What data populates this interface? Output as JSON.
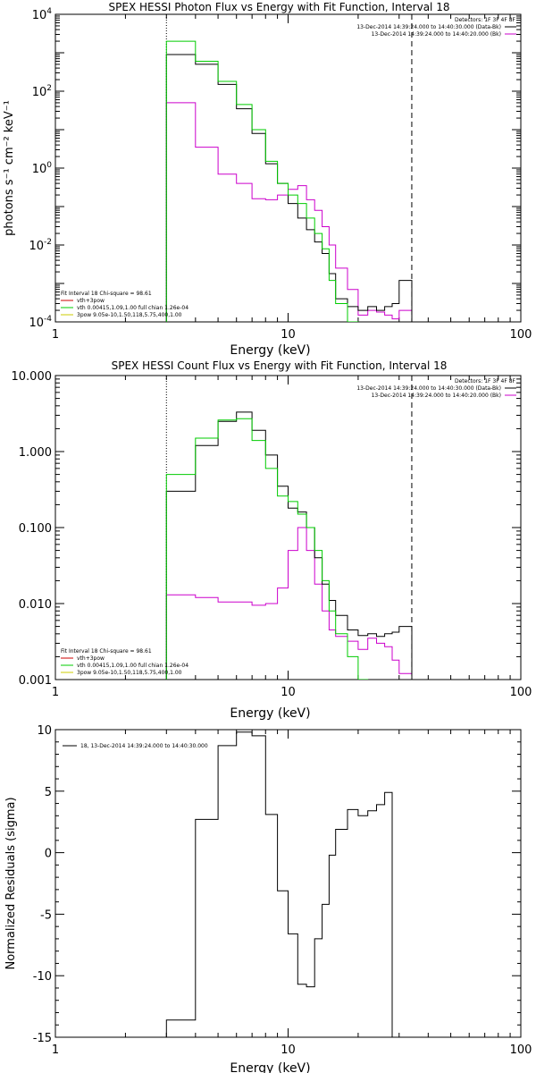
{
  "colors": {
    "black": "#000000",
    "green": "#00cc00",
    "magenta": "#cc00cc",
    "red": "#cc0000",
    "yellow": "#cccc00"
  },
  "chart_data": [
    {
      "type": "line",
      "title": "SPEX HESSI Photon Flux vs Energy with Fit Function, Interval 18",
      "xlabel": "Energy (keV)",
      "ylabel": "photons s⁻¹ cm⁻² keV⁻¹",
      "xscale": "log",
      "yscale": "log",
      "xlim": [
        1,
        100
      ],
      "ylim": [
        0.0001,
        10000
      ],
      "xticks": [
        {
          "v": 1,
          "t": "1"
        },
        {
          "v": 10,
          "t": "10"
        },
        {
          "v": 100,
          "t": "100"
        }
      ],
      "yticks": [
        {
          "v": 0.0001,
          "b": "10",
          "e": "-4"
        },
        {
          "v": 0.01,
          "b": "10",
          "e": "-2"
        },
        {
          "v": 1,
          "b": "10",
          "e": "0"
        },
        {
          "v": 100,
          "b": "10",
          "e": "2"
        },
        {
          "v": 10000,
          "b": "10",
          "e": "4"
        }
      ],
      "vlines": [
        {
          "x": 3.0,
          "style": "dotted"
        },
        {
          "x": 34.0,
          "style": "dashed"
        }
      ],
      "legend_top": [
        "Detectors: 1F 3F 4F 8F",
        "13-Dec-2014 14:39:24.000 to 14:40:30.000 (Data-Bk)",
        "13-Dec-2014 14:39:24.000 to 14:40:20.000 (Bk)"
      ],
      "legend_bottom": [
        "Fit Interval 18   Chi-square = 98.61",
        "vth+3pow",
        "vth 0.00415,1.09,1.00  full chian 1.26e-04",
        "3pow 9.05e-10,1.50,118,5.75,400,1.00"
      ],
      "edges": [
        3.0,
        3.5,
        4.0,
        5.0,
        6.0,
        7.0,
        8.0,
        9.0,
        10.0,
        11.0,
        12.0,
        13.0,
        14.0,
        15.0,
        16.0,
        18.0,
        20.0,
        22.0,
        24.0,
        26.0,
        28.0,
        30.0,
        34.0
      ],
      "series": [
        {
          "name": "13-Dec-2014 14:39:24.000 to 14:40:30.000 (Data-Bk)",
          "color": "black",
          "values": [
            900,
            900,
            500,
            150,
            35,
            8,
            1.3,
            0.4,
            0.12,
            0.05,
            0.025,
            0.012,
            0.006,
            0.0018,
            0.0004,
            0.00025,
            0.0002,
            0.00025,
            0.0002,
            0.00025,
            0.0003,
            0.0012
          ]
        },
        {
          "name": "13-Dec-2014 14:39:24.000 to 14:40:20.000 (Bk)",
          "color": "magenta",
          "values": [
            50,
            50,
            3.5,
            0.7,
            0.4,
            0.16,
            0.15,
            0.2,
            0.28,
            0.35,
            0.15,
            0.08,
            0.03,
            0.01,
            0.0025,
            0.0007,
            0.00015,
            0.0002,
            0.00018,
            0.00015,
            0.00012,
            0.0002
          ]
        },
        {
          "name": "vth 0.00415,1.09,1.00  full chian 1.26e-04",
          "color": "green",
          "values": [
            2000,
            2000,
            600,
            180,
            45,
            10,
            1.5,
            0.4,
            0.2,
            0.12,
            0.05,
            0.02,
            0.008,
            0.0012,
            0.0003,
            8e-05
          ]
        }
      ]
    },
    {
      "type": "line",
      "title": "SPEX HESSI Count Flux vs Energy with Fit Function, Interval 18",
      "xlabel": "Energy (keV)",
      "ylabel": "",
      "xscale": "log",
      "yscale": "log",
      "xlim": [
        1,
        100
      ],
      "ylim": [
        0.001,
        10
      ],
      "xticks": [
        {
          "v": 1,
          "t": "1"
        },
        {
          "v": 10,
          "t": "10"
        },
        {
          "v": 100,
          "t": "100"
        }
      ],
      "yticks": [
        {
          "v": 0.001,
          "t": "0.001"
        },
        {
          "v": 0.01,
          "t": "0.010"
        },
        {
          "v": 0.1,
          "t": "0.100"
        },
        {
          "v": 1,
          "t": "1.000"
        },
        {
          "v": 10,
          "t": "10.000"
        }
      ],
      "vlines": [
        {
          "x": 3.0,
          "style": "dotted"
        },
        {
          "x": 34.0,
          "style": "dashed"
        }
      ],
      "legend_top": [
        "Detectors: 1F 3F 4F 8F",
        "13-Dec-2014 14:39:24.000 to 14:40:30.000 (Data-Bk)",
        "13-Dec-2014 14:39:24.000 to 14:40:20.000 (Bk)"
      ],
      "legend_bottom": [
        "Fit Interval 18   Chi-square = 98.61",
        "vth+3pow",
        "vth 0.00415,1.09,1.00  full chian 1.26e-04",
        "3pow 9.05e-10,1.50,118,5.75,400,1.00"
      ],
      "edges": [
        3.0,
        4.0,
        5.0,
        6.0,
        7.0,
        8.0,
        9.0,
        10.0,
        11.0,
        12.0,
        13.0,
        14.0,
        15.0,
        16.0,
        18.0,
        20.0,
        22.0,
        24.0,
        26.0,
        28.0,
        30.0,
        34.0
      ],
      "series": [
        {
          "name": "13-Dec-2014 14:39:24.000 to 14:40:30.000 (Data-Bk)",
          "color": "black",
          "values": [
            0.3,
            1.2,
            2.5,
            3.3,
            1.9,
            0.9,
            0.35,
            0.18,
            0.16,
            0.1,
            0.04,
            0.018,
            0.011,
            0.007,
            0.0045,
            0.0038,
            0.004,
            0.0037,
            0.004,
            0.0042,
            0.005
          ]
        },
        {
          "name": "13-Dec-2014 14:39:24.000 to 14:40:20.000 (Bk)",
          "color": "magenta",
          "values": [
            0.013,
            0.012,
            0.0105,
            0.0105,
            0.0095,
            0.01,
            0.016,
            0.05,
            0.1,
            0.05,
            0.018,
            0.008,
            0.0045,
            0.0037,
            0.0032,
            0.0025,
            0.0035,
            0.003,
            0.0027,
            0.0018,
            0.0012
          ]
        },
        {
          "name": "vth 0.00415,1.09,1.00  full chian 1.26e-04",
          "color": "green",
          "values": [
            0.5,
            1.5,
            2.6,
            2.7,
            1.4,
            0.6,
            0.26,
            0.22,
            0.15,
            0.1,
            0.05,
            0.02,
            0.008,
            0.004,
            0.002,
            0.001
          ]
        }
      ]
    },
    {
      "type": "line",
      "title": "",
      "xlabel": "Energy (keV)",
      "ylabel": "Normalized Residuals (sigma)",
      "xscale": "log",
      "yscale": "linear",
      "xlim": [
        1,
        100
      ],
      "ylim": [
        -15,
        10
      ],
      "xticks": [
        {
          "v": 1,
          "t": "1"
        },
        {
          "v": 10,
          "t": "10"
        },
        {
          "v": 100,
          "t": "100"
        }
      ],
      "yticks": [
        {
          "v": -15,
          "t": "-15"
        },
        {
          "v": -10,
          "t": "-10"
        },
        {
          "v": -5,
          "t": "-5"
        },
        {
          "v": 0,
          "t": "0"
        },
        {
          "v": 5,
          "t": "5"
        },
        {
          "v": 10,
          "t": "10"
        }
      ],
      "legend_top": [
        "18, 13-Dec-2014 14:39:24.000 to 14:40:30.000"
      ],
      "edges": [
        3.0,
        4.0,
        5.0,
        6.0,
        7.0,
        8.0,
        9.0,
        10.0,
        11.0,
        12.0,
        13.0,
        14.0,
        15.0,
        16.0,
        18.0,
        20.0,
        22.0,
        24.0,
        26.0,
        28.0,
        30.0,
        34.0
      ],
      "series": [
        {
          "name": "18, 13-Dec-2014 14:39:24.000 to 14:40:30.000",
          "color": "black",
          "values": [
            -13.6,
            2.7,
            8.7,
            9.8,
            9.5,
            3.1,
            -3.1,
            -6.6,
            -10.7,
            -10.9,
            -7.0,
            -4.2,
            -0.2,
            1.9,
            3.5,
            3.0,
            3.4,
            3.9,
            4.9
          ]
        }
      ]
    }
  ]
}
